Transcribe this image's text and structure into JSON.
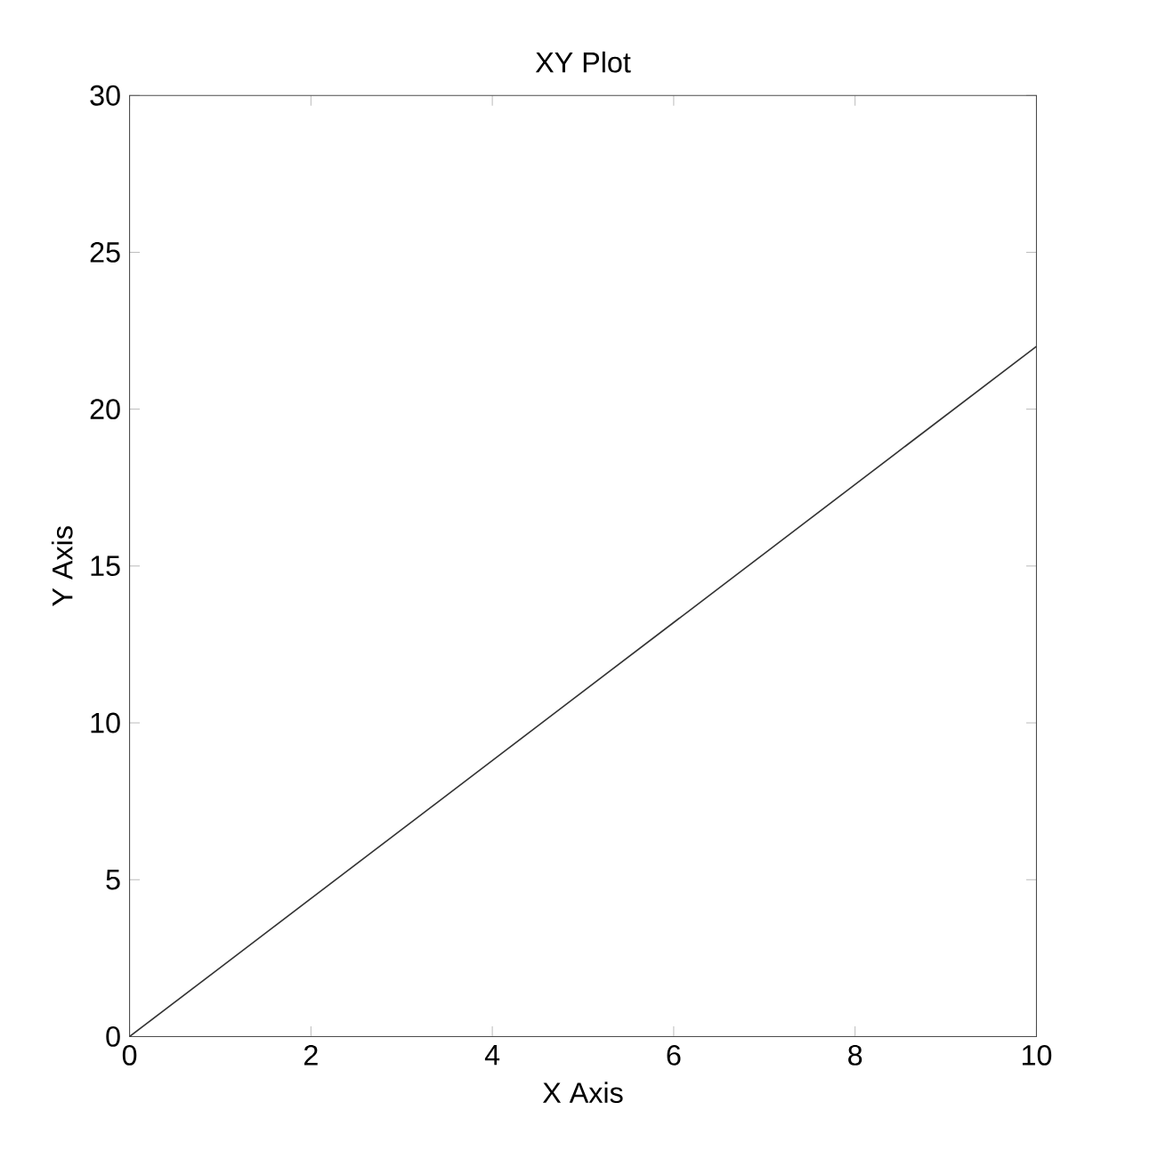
{
  "chart_data": {
    "type": "line",
    "title": "XY Plot",
    "xlabel": "X Axis",
    "ylabel": "Y Axis",
    "x": [
      0,
      10
    ],
    "series": [
      {
        "color": "#333333",
        "values": [
          0,
          22
        ]
      }
    ],
    "xlim": [
      0,
      10
    ],
    "ylim": [
      0,
      30
    ],
    "xticks": [
      0,
      2,
      4,
      6,
      8,
      10
    ],
    "yticks": [
      0,
      5,
      10,
      15,
      20,
      25,
      30
    ],
    "grid": false,
    "marker": "none",
    "line_style": "solid"
  }
}
